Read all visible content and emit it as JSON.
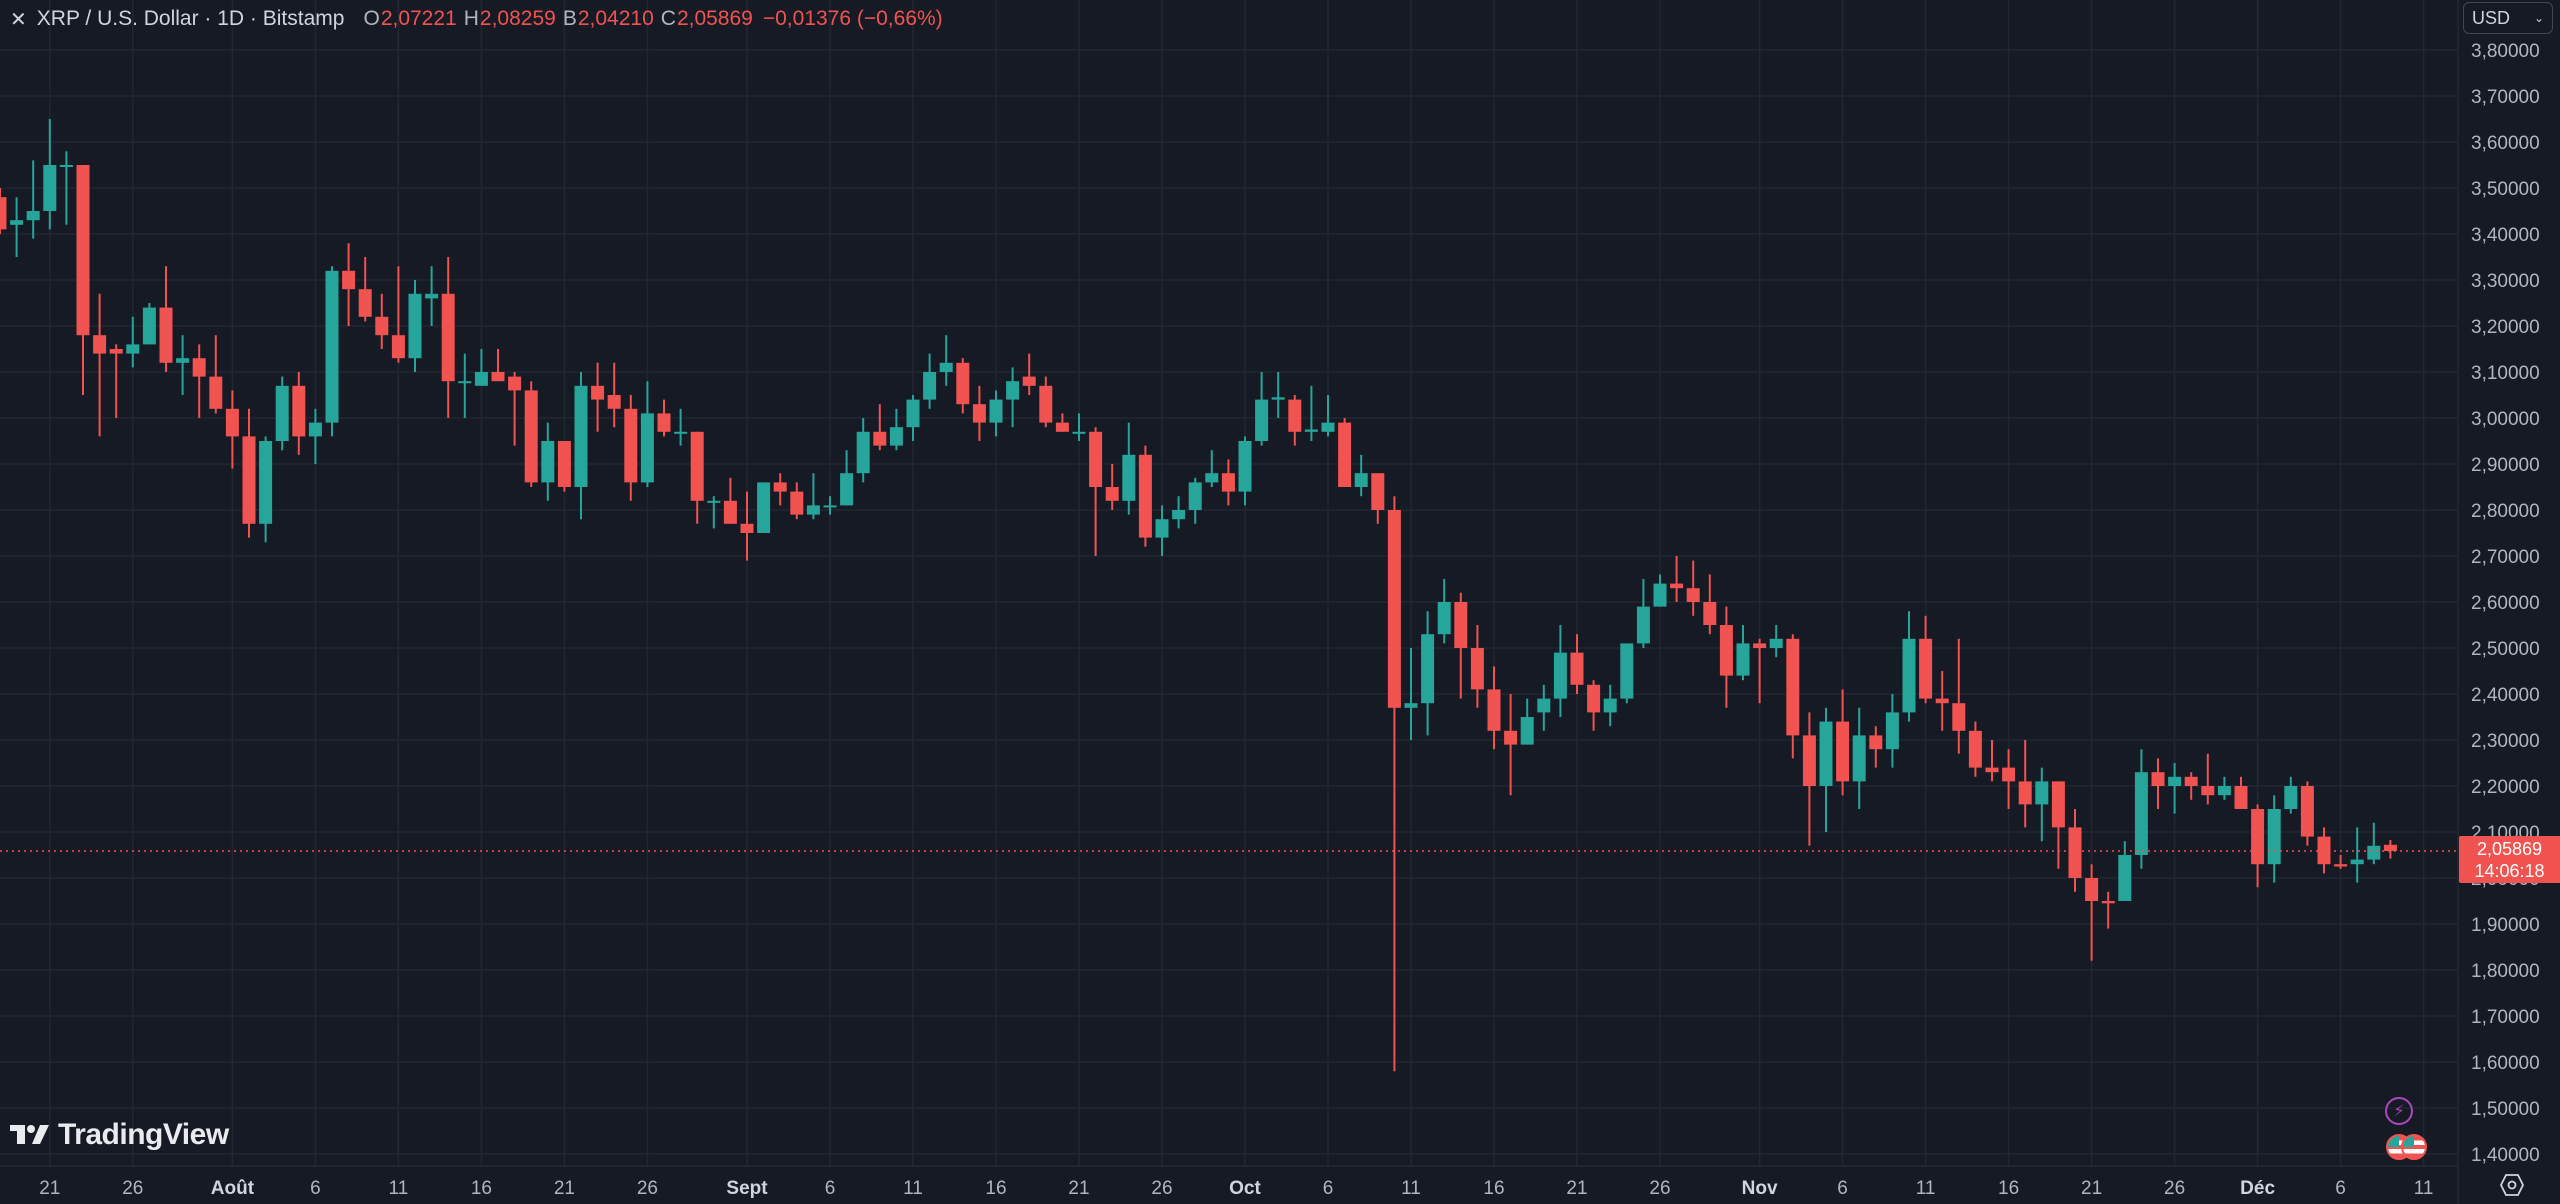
{
  "legend": {
    "close_icon": "close-x",
    "title": "XRP / U.S. Dollar · 1D · Bitstamp",
    "open_label": "O",
    "open": "2,07221",
    "high_label": "H",
    "high": "2,08259",
    "low_label": "B",
    "low": "2,04210",
    "close_label": "C",
    "close": "2,05869",
    "change": "−0,01376 (−0,66%)"
  },
  "currency_select": {
    "value": "USD",
    "icon": "chevron-down"
  },
  "last_price_tag": {
    "price": "2,05869",
    "countdown": "14:06:18"
  },
  "branding": {
    "logo_text": "TradingView"
  },
  "event_markers": [
    {
      "type": "lightning-event",
      "icon": "bolt"
    },
    {
      "type": "us-economic-event",
      "icon": "us-flag"
    },
    {
      "type": "us-economic-event",
      "icon": "us-flag"
    }
  ],
  "settings_icon": "gear-hexagon",
  "colors": {
    "background": "#161a25",
    "grid": "#222631",
    "up": "#26a69a",
    "down": "#f05350",
    "axis_text": "#b2b5be",
    "last_price_line": "#f05350"
  },
  "chart_data": {
    "type": "candlestick",
    "title": "XRP / U.S. Dollar · 1D · Bitstamp",
    "xlabel": "",
    "ylabel": "USD",
    "ylim": [
      1.37,
      3.83
    ],
    "grid": true,
    "y_ticks": [
      "3,80000",
      "3,70000",
      "3,60000",
      "3,50000",
      "3,40000",
      "3,30000",
      "3,20000",
      "3,10000",
      "3,00000",
      "2,90000",
      "2,80000",
      "2,70000",
      "2,60000",
      "2,50000",
      "2,40000",
      "2,30000",
      "2,20000",
      "2,10000",
      "2,00000",
      "1,90000",
      "1,80000",
      "1,70000",
      "1,60000",
      "1,50000",
      "1,40000"
    ],
    "y_tick_values": [
      3.8,
      3.7,
      3.6,
      3.5,
      3.4,
      3.3,
      3.2,
      3.1,
      3.0,
      2.9,
      2.8,
      2.7,
      2.6,
      2.5,
      2.4,
      2.3,
      2.2,
      2.1,
      2.0,
      1.9,
      1.8,
      1.7,
      1.6,
      1.5,
      1.4
    ],
    "x_ticks": [
      {
        "label": "21",
        "day": 3,
        "bold": false
      },
      {
        "label": "26",
        "day": 8,
        "bold": false
      },
      {
        "label": "Août",
        "day": 14,
        "bold": true
      },
      {
        "label": "6",
        "day": 19,
        "bold": false
      },
      {
        "label": "11",
        "day": 24,
        "bold": false
      },
      {
        "label": "16",
        "day": 29,
        "bold": false
      },
      {
        "label": "21",
        "day": 34,
        "bold": false
      },
      {
        "label": "26",
        "day": 39,
        "bold": false
      },
      {
        "label": "Sept",
        "day": 45,
        "bold": true
      },
      {
        "label": "6",
        "day": 50,
        "bold": false
      },
      {
        "label": "11",
        "day": 55,
        "bold": false
      },
      {
        "label": "16",
        "day": 60,
        "bold": false
      },
      {
        "label": "21",
        "day": 65,
        "bold": false
      },
      {
        "label": "26",
        "day": 70,
        "bold": false
      },
      {
        "label": "Oct",
        "day": 75,
        "bold": true
      },
      {
        "label": "6",
        "day": 80,
        "bold": false
      },
      {
        "label": "11",
        "day": 85,
        "bold": false
      },
      {
        "label": "16",
        "day": 90,
        "bold": false
      },
      {
        "label": "21",
        "day": 95,
        "bold": false
      },
      {
        "label": "26",
        "day": 100,
        "bold": false
      },
      {
        "label": "Nov",
        "day": 106,
        "bold": true
      },
      {
        "label": "6",
        "day": 111,
        "bold": false
      },
      {
        "label": "11",
        "day": 116,
        "bold": false
      },
      {
        "label": "16",
        "day": 121,
        "bold": false
      },
      {
        "label": "21",
        "day": 126,
        "bold": false
      },
      {
        "label": "26",
        "day": 131,
        "bold": false
      },
      {
        "label": "Déc",
        "day": 136,
        "bold": true
      },
      {
        "label": "6",
        "day": 141,
        "bold": false
      },
      {
        "label": "11",
        "day": 146,
        "bold": false
      }
    ],
    "start_date": "Jul 18",
    "candles_columns": [
      "date",
      "open",
      "high",
      "low",
      "close"
    ],
    "candles": [
      [
        "Jul 18",
        3.48,
        3.5,
        3.4,
        3.41
      ],
      [
        "Jul 19",
        3.42,
        3.48,
        3.35,
        3.43
      ],
      [
        "Jul 20",
        3.43,
        3.56,
        3.39,
        3.45
      ],
      [
        "Jul 21",
        3.45,
        3.65,
        3.41,
        3.55
      ],
      [
        "Jul 22",
        3.55,
        3.58,
        3.42,
        3.55
      ],
      [
        "Jul 23",
        3.55,
        3.55,
        3.05,
        3.18
      ],
      [
        "Jul 24",
        3.18,
        3.27,
        2.96,
        3.14
      ],
      [
        "Jul 25",
        3.15,
        3.16,
        3.0,
        3.14
      ],
      [
        "Jul 26",
        3.14,
        3.22,
        3.11,
        3.16
      ],
      [
        "Jul 27",
        3.16,
        3.25,
        3.16,
        3.24
      ],
      [
        "Jul 28",
        3.24,
        3.33,
        3.1,
        3.12
      ],
      [
        "Jul 29",
        3.12,
        3.18,
        3.05,
        3.13
      ],
      [
        "Jul 30",
        3.13,
        3.16,
        3.0,
        3.09
      ],
      [
        "Jul 31",
        3.09,
        3.18,
        3.01,
        3.02
      ],
      [
        "Aug 1",
        3.02,
        3.06,
        2.89,
        2.96
      ],
      [
        "Aug 2",
        2.96,
        3.02,
        2.74,
        2.77
      ],
      [
        "Aug 3",
        2.77,
        2.96,
        2.73,
        2.95
      ],
      [
        "Aug 4",
        2.95,
        3.09,
        2.93,
        3.07
      ],
      [
        "Aug 5",
        3.07,
        3.1,
        2.92,
        2.96
      ],
      [
        "Aug 6",
        2.96,
        3.02,
        2.9,
        2.99
      ],
      [
        "Aug 7",
        2.99,
        3.33,
        2.96,
        3.32
      ],
      [
        "Aug 8",
        3.32,
        3.38,
        3.2,
        3.28
      ],
      [
        "Aug 9",
        3.28,
        3.35,
        3.21,
        3.22
      ],
      [
        "Aug 10",
        3.22,
        3.27,
        3.15,
        3.18
      ],
      [
        "Aug 11",
        3.18,
        3.33,
        3.12,
        3.13
      ],
      [
        "Aug 12",
        3.13,
        3.3,
        3.1,
        3.27
      ],
      [
        "Aug 13",
        3.26,
        3.33,
        3.2,
        3.27
      ],
      [
        "Aug 14",
        3.27,
        3.35,
        3.0,
        3.08
      ],
      [
        "Aug 15",
        3.08,
        3.14,
        3.0,
        3.08
      ],
      [
        "Aug 16",
        3.07,
        3.15,
        3.07,
        3.1
      ],
      [
        "Aug 17",
        3.1,
        3.15,
        3.08,
        3.08
      ],
      [
        "Aug 18",
        3.09,
        3.1,
        2.94,
        3.06
      ],
      [
        "Aug 19",
        3.06,
        3.08,
        2.85,
        2.86
      ],
      [
        "Aug 20",
        2.86,
        2.99,
        2.82,
        2.95
      ],
      [
        "Aug 21",
        2.95,
        2.95,
        2.84,
        2.85
      ],
      [
        "Aug 22",
        2.85,
        3.1,
        2.78,
        3.07
      ],
      [
        "Aug 23",
        3.07,
        3.12,
        2.97,
        3.04
      ],
      [
        "Aug 24",
        3.05,
        3.12,
        2.98,
        3.02
      ],
      [
        "Aug 25",
        3.02,
        3.05,
        2.82,
        2.86
      ],
      [
        "Aug 26",
        2.86,
        3.08,
        2.85,
        3.01
      ],
      [
        "Aug 27",
        3.01,
        3.04,
        2.96,
        2.97
      ],
      [
        "Aug 28",
        2.97,
        3.02,
        2.94,
        2.97
      ],
      [
        "Aug 29",
        2.97,
        2.97,
        2.77,
        2.82
      ],
      [
        "Aug 30",
        2.82,
        2.83,
        2.76,
        2.82
      ],
      [
        "Aug 31",
        2.82,
        2.87,
        2.77,
        2.77
      ],
      [
        "Sep 1",
        2.77,
        2.84,
        2.69,
        2.75
      ],
      [
        "Sep 2",
        2.75,
        2.86,
        2.75,
        2.86
      ],
      [
        "Sep 3",
        2.86,
        2.88,
        2.81,
        2.84
      ],
      [
        "Sep 4",
        2.84,
        2.86,
        2.78,
        2.79
      ],
      [
        "Sep 5",
        2.79,
        2.88,
        2.78,
        2.81
      ],
      [
        "Sep 6",
        2.81,
        2.83,
        2.79,
        2.81
      ],
      [
        "Sep 7",
        2.81,
        2.93,
        2.81,
        2.88
      ],
      [
        "Sep 8",
        2.88,
        3.0,
        2.86,
        2.97
      ],
      [
        "Sep 9",
        2.97,
        3.03,
        2.93,
        2.94
      ],
      [
        "Sep 10",
        2.94,
        3.02,
        2.93,
        2.98
      ],
      [
        "Sep 11",
        2.98,
        3.05,
        2.95,
        3.04
      ],
      [
        "Sep 12",
        3.04,
        3.14,
        3.02,
        3.1
      ],
      [
        "Sep 13",
        3.1,
        3.18,
        3.07,
        3.12
      ],
      [
        "Sep 14",
        3.12,
        3.13,
        3.01,
        3.03
      ],
      [
        "Sep 15",
        3.03,
        3.07,
        2.95,
        2.99
      ],
      [
        "Sep 16",
        2.99,
        3.06,
        2.96,
        3.04
      ],
      [
        "Sep 17",
        3.04,
        3.11,
        2.98,
        3.08
      ],
      [
        "Sep 18",
        3.09,
        3.14,
        3.05,
        3.07
      ],
      [
        "Sep 19",
        3.07,
        3.09,
        2.98,
        2.99
      ],
      [
        "Sep 20",
        2.99,
        3.01,
        2.97,
        2.97
      ],
      [
        "Sep 21",
        2.97,
        3.01,
        2.95,
        2.97
      ],
      [
        "Sep 22",
        2.97,
        2.98,
        2.7,
        2.85
      ],
      [
        "Sep 23",
        2.85,
        2.9,
        2.8,
        2.82
      ],
      [
        "Sep 24",
        2.82,
        2.99,
        2.79,
        2.92
      ],
      [
        "Sep 25",
        2.92,
        2.94,
        2.72,
        2.74
      ],
      [
        "Sep 26",
        2.74,
        2.81,
        2.7,
        2.78
      ],
      [
        "Sep 27",
        2.78,
        2.83,
        2.76,
        2.8
      ],
      [
        "Sep 28",
        2.8,
        2.87,
        2.77,
        2.86
      ],
      [
        "Sep 29",
        2.86,
        2.93,
        2.85,
        2.88
      ],
      [
        "Sep 30",
        2.88,
        2.91,
        2.81,
        2.84
      ],
      [
        "Oct 1",
        2.84,
        2.96,
        2.81,
        2.95
      ],
      [
        "Oct 2",
        2.95,
        3.1,
        2.94,
        3.04
      ],
      [
        "Oct 3",
        3.04,
        3.1,
        3.0,
        3.045
      ],
      [
        "Oct 4",
        3.04,
        3.05,
        2.94,
        2.97
      ],
      [
        "Oct 5",
        2.97,
        3.07,
        2.95,
        2.975
      ],
      [
        "Oct 6",
        2.97,
        3.05,
        2.96,
        2.99
      ],
      [
        "Oct 7",
        2.99,
        3.0,
        2.85,
        2.85
      ],
      [
        "Oct 8",
        2.85,
        2.92,
        2.83,
        2.88
      ],
      [
        "Oct 9",
        2.88,
        2.88,
        2.77,
        2.8
      ],
      [
        "Oct 10",
        2.8,
        2.83,
        1.58,
        2.37
      ],
      [
        "Oct 11",
        2.37,
        2.5,
        2.3,
        2.38
      ],
      [
        "Oct 12",
        2.38,
        2.58,
        2.31,
        2.53
      ],
      [
        "Oct 13",
        2.53,
        2.65,
        2.51,
        2.6
      ],
      [
        "Oct 14",
        2.6,
        2.62,
        2.39,
        2.5
      ],
      [
        "Oct 15",
        2.5,
        2.55,
        2.37,
        2.41
      ],
      [
        "Oct 16",
        2.41,
        2.46,
        2.28,
        2.32
      ],
      [
        "Oct 17",
        2.32,
        2.4,
        2.18,
        2.29
      ],
      [
        "Oct 18",
        2.29,
        2.39,
        2.29,
        2.35
      ],
      [
        "Oct 19",
        2.36,
        2.42,
        2.32,
        2.39
      ],
      [
        "Oct 20",
        2.39,
        2.55,
        2.35,
        2.49
      ],
      [
        "Oct 21",
        2.49,
        2.53,
        2.4,
        2.42
      ],
      [
        "Oct 22",
        2.42,
        2.43,
        2.32,
        2.36
      ],
      [
        "Oct 23",
        2.36,
        2.42,
        2.33,
        2.39
      ],
      [
        "Oct 24",
        2.39,
        2.51,
        2.38,
        2.51
      ],
      [
        "Oct 25",
        2.51,
        2.65,
        2.5,
        2.59
      ],
      [
        "Oct 26",
        2.59,
        2.66,
        2.59,
        2.64
      ],
      [
        "Oct 27",
        2.64,
        2.7,
        2.6,
        2.63
      ],
      [
        "Oct 28",
        2.63,
        2.69,
        2.57,
        2.6
      ],
      [
        "Oct 29",
        2.6,
        2.66,
        2.53,
        2.55
      ],
      [
        "Oct 30",
        2.55,
        2.59,
        2.37,
        2.44
      ],
      [
        "Oct 31",
        2.44,
        2.55,
        2.43,
        2.51
      ],
      [
        "Nov 1",
        2.51,
        2.52,
        2.38,
        2.5
      ],
      [
        "Nov 2",
        2.5,
        2.55,
        2.48,
        2.52
      ],
      [
        "Nov 3",
        2.52,
        2.53,
        2.26,
        2.31
      ],
      [
        "Nov 4",
        2.31,
        2.36,
        2.07,
        2.2
      ],
      [
        "Nov 5",
        2.2,
        2.37,
        2.1,
        2.34
      ],
      [
        "Nov 6",
        2.34,
        2.41,
        2.18,
        2.21
      ],
      [
        "Nov 7",
        2.21,
        2.37,
        2.15,
        2.31
      ],
      [
        "Nov 8",
        2.31,
        2.33,
        2.24,
        2.28
      ],
      [
        "Nov 9",
        2.28,
        2.4,
        2.24,
        2.36
      ],
      [
        "Nov 10",
        2.36,
        2.58,
        2.34,
        2.52
      ],
      [
        "Nov 11",
        2.52,
        2.57,
        2.38,
        2.39
      ],
      [
        "Nov 12",
        2.39,
        2.45,
        2.32,
        2.38
      ],
      [
        "Nov 13",
        2.38,
        2.52,
        2.27,
        2.32
      ],
      [
        "Nov 14",
        2.32,
        2.34,
        2.22,
        2.24
      ],
      [
        "Nov 15",
        2.24,
        2.3,
        2.21,
        2.23
      ],
      [
        "Nov 16",
        2.24,
        2.28,
        2.15,
        2.21
      ],
      [
        "Nov 17",
        2.21,
        2.3,
        2.11,
        2.16
      ],
      [
        "Nov 18",
        2.16,
        2.24,
        2.08,
        2.21
      ],
      [
        "Nov 19",
        2.21,
        2.21,
        2.02,
        2.11
      ],
      [
        "Nov 20",
        2.11,
        2.15,
        1.97,
        2.0
      ],
      [
        "Nov 21",
        2.0,
        2.03,
        1.82,
        1.95
      ],
      [
        "Nov 22",
        1.95,
        1.97,
        1.89,
        1.945
      ],
      [
        "Nov 23",
        1.95,
        2.08,
        1.95,
        2.05
      ],
      [
        "Nov 24",
        2.05,
        2.28,
        2.02,
        2.23
      ],
      [
        "Nov 25",
        2.23,
        2.26,
        2.15,
        2.2
      ],
      [
        "Nov 26",
        2.2,
        2.25,
        2.14,
        2.22
      ],
      [
        "Nov 27",
        2.22,
        2.23,
        2.17,
        2.2
      ],
      [
        "Nov 28",
        2.2,
        2.27,
        2.16,
        2.18
      ],
      [
        "Nov 29",
        2.18,
        2.22,
        2.17,
        2.2
      ],
      [
        "Nov 30",
        2.2,
        2.22,
        2.15,
        2.15
      ],
      [
        "Dec 1",
        2.15,
        2.16,
        1.98,
        2.03
      ],
      [
        "Dec 2",
        2.03,
        2.18,
        1.99,
        2.15
      ],
      [
        "Dec 3",
        2.15,
        2.22,
        2.14,
        2.2
      ],
      [
        "Dec 4",
        2.2,
        2.21,
        2.07,
        2.09
      ],
      [
        "Dec 5",
        2.09,
        2.11,
        2.01,
        2.03
      ],
      [
        "Dec 6",
        2.03,
        2.05,
        2.02,
        2.025
      ],
      [
        "Dec 7",
        2.03,
        2.11,
        1.99,
        2.04
      ],
      [
        "Dec 8",
        2.04,
        2.12,
        2.03,
        2.07
      ],
      [
        "Dec 9",
        2.07221,
        2.08259,
        2.0421,
        2.05869
      ]
    ],
    "last_price": 2.05869,
    "legend_position": "top-left"
  }
}
